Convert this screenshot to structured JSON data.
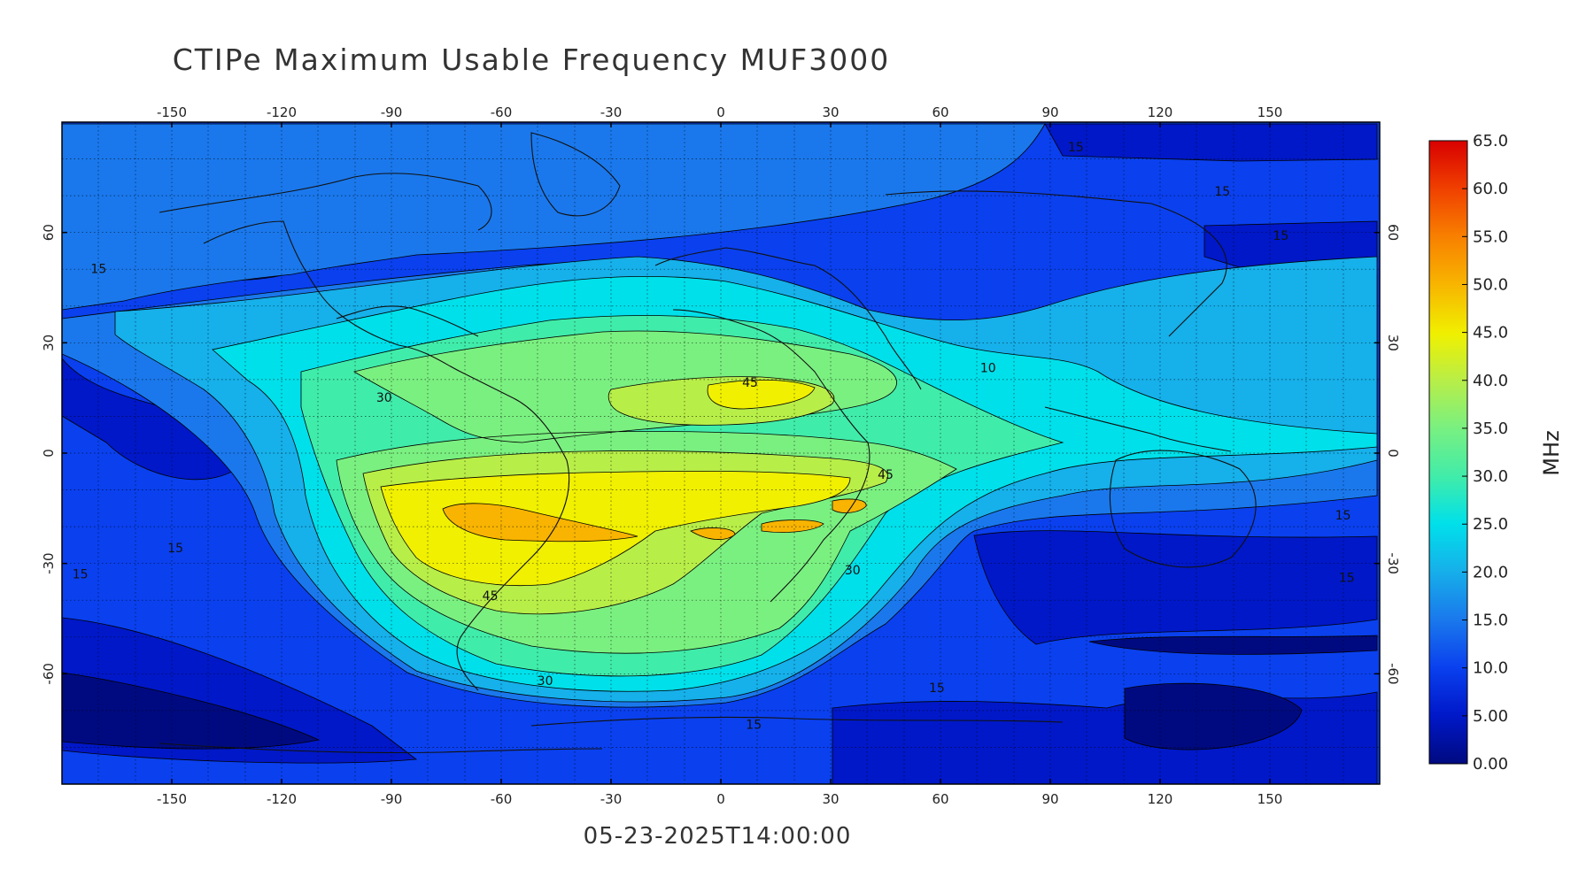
{
  "title": "CTIPe Maximum Usable Frequency MUF3000",
  "timestamp": "05-23-2025T14:00:00",
  "map": {
    "lon_range": [
      -180,
      180
    ],
    "lat_range": [
      -90,
      90
    ],
    "grid": true,
    "lon_ticks": [
      "-150",
      "-120",
      "-90",
      "-60",
      "-30",
      "0",
      "30",
      "60",
      "90",
      "120",
      "150"
    ],
    "lat_ticks": [
      "60",
      "30",
      "0",
      "-30",
      "-60"
    ],
    "contour_labels": [
      {
        "text": "45",
        "lon": 8,
        "lat": 18
      },
      {
        "text": "45",
        "lon": 45,
        "lat": -7
      },
      {
        "text": "45",
        "lon": -63,
        "lat": -40
      },
      {
        "text": "30",
        "lon": -92,
        "lat": 14
      },
      {
        "text": "30",
        "lon": -48,
        "lat": -63
      },
      {
        "text": "30",
        "lon": 36,
        "lat": -33
      },
      {
        "text": "15",
        "lon": 9,
        "lat": -75
      },
      {
        "text": "15",
        "lon": 59,
        "lat": -65
      },
      {
        "text": "15",
        "lon": -149,
        "lat": -27
      },
      {
        "text": "15",
        "lon": -175,
        "lat": -34
      },
      {
        "text": "15",
        "lon": -170,
        "lat": 49
      },
      {
        "text": "15",
        "lon": 97,
        "lat": 82
      },
      {
        "text": "15",
        "lon": 137,
        "lat": 70
      },
      {
        "text": "15",
        "lon": 153,
        "lat": 58
      },
      {
        "text": "15",
        "lon": 170,
        "lat": -18
      },
      {
        "text": "15",
        "lon": 171,
        "lat": -35
      },
      {
        "text": "10",
        "lon": 73,
        "lat": 22
      }
    ]
  },
  "colorbar": {
    "label": "MHz",
    "ticks": [
      "65.0",
      "60.0",
      "55.0",
      "50.0",
      "45.0",
      "40.0",
      "35.0",
      "30.0",
      "25.0",
      "20.0",
      "15.0",
      "10.0",
      "5.00",
      "0.00"
    ],
    "range": [
      0,
      65
    ],
    "colors": [
      "#000a80",
      "#0018c8",
      "#0a40ee",
      "#1a78ec",
      "#16b0ea",
      "#00e0ea",
      "#40ecaa",
      "#7af080",
      "#b8ee48",
      "#f0f000",
      "#f8b400",
      "#f88000",
      "#f04000",
      "#d80000"
    ]
  }
}
